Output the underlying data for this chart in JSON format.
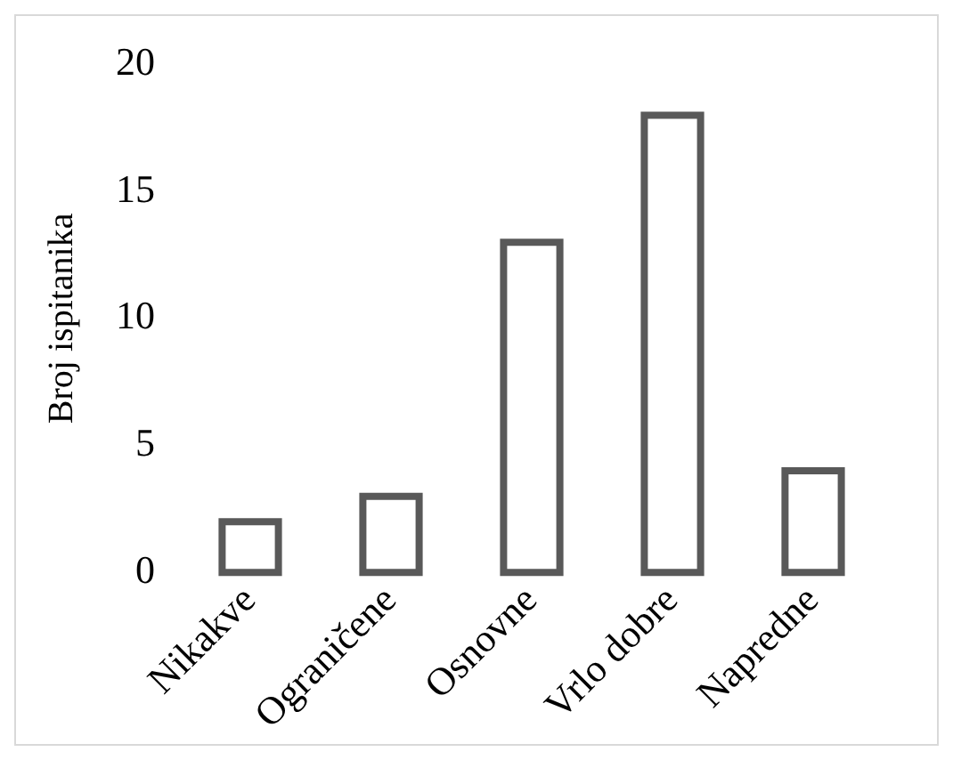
{
  "chart_data": {
    "type": "bar",
    "ylabel": "Broj ispitanika",
    "categories": [
      "Nikakve",
      "Ograničene",
      "Osnovne",
      "Vrlo dobre",
      "Napredne"
    ],
    "values": [
      2,
      3,
      13,
      18,
      4
    ],
    "color": "#595959",
    "ylim": [
      0,
      20
    ],
    "yticks": [
      0,
      5,
      10,
      15,
      20
    ],
    "grid": false,
    "legend": false
  }
}
